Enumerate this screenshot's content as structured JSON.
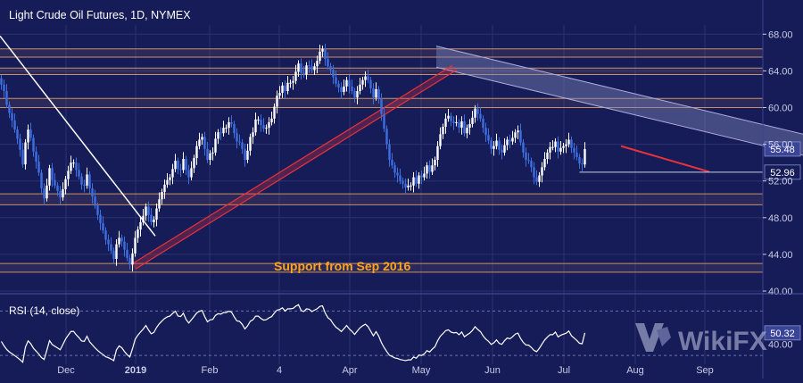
{
  "chart_title": "Light Crude Oil Futures, 1D, NYMEX",
  "annotation": "Support from Sep 2016",
  "watermark": "WikiFX",
  "colors": {
    "background": "#161c57",
    "grid": "#2a3270",
    "up_candle": "#ffffff",
    "down_candle": "#3d6fe0",
    "zone_line": "#c98f6a",
    "trendline_white": "#ffffff",
    "trendline_red": "#e8323c",
    "channel_fill": "#7c82b8",
    "annotation_text": "#ffa31a",
    "axis_text": "#c9cde6"
  },
  "chart_data": [
    {
      "type": "candlestick",
      "title": "Light Crude Oil Futures, 1D, NYMEX",
      "y_ticks": [
        "68.00",
        "64.00",
        "60.00",
        "56.00",
        "52.00",
        "48.00",
        "44.00",
        "40.00"
      ],
      "x_ticks": [
        "Dec",
        "2019",
        "Feb",
        "4",
        "Apr",
        "May",
        "Jun",
        "Jul",
        "Aug",
        "Sep"
      ],
      "ylim": [
        40,
        69
      ],
      "price_labels": [
        {
          "text": "55.48",
          "value": 55.48
        },
        {
          "text": "52.96",
          "value": 52.96
        }
      ],
      "horizontal_zones": [
        {
          "from": 42.05,
          "to": 43.0
        },
        {
          "from": 49.4,
          "to": 50.6
        },
        {
          "from": 60.0,
          "to": 61.0
        },
        {
          "from": 63.6,
          "to": 64.3
        },
        {
          "from": 65.5,
          "to": 66.4
        }
      ],
      "trendlines": [
        {
          "name": "falling-white",
          "start": {
            "day": 0,
            "price": 67.8
          },
          "end": {
            "day": 58,
            "price": 46.0
          }
        },
        {
          "name": "rising-red",
          "start": {
            "day": 49,
            "price": 42.9
          },
          "end": {
            "day": 169,
            "price": 64.6
          }
        },
        {
          "name": "falling-red",
          "start": {
            "day": 232,
            "price": 55.8
          },
          "end": {
            "day": 265,
            "price": 53.0
          }
        }
      ],
      "channel": {
        "upper_start": {
          "day": 163,
          "price": 66.7
        },
        "upper_end": {
          "day": 310,
          "price": 56.4
        },
        "width": 2.3
      },
      "series": [
        {
          "open": [
            63.2,
            62.5,
            61.8,
            60.3,
            59.4,
            58.6,
            57.6,
            56.6,
            55.4,
            53.8,
            56.2,
            57.6,
            56.7,
            55.2,
            54.1,
            52.9,
            51.2,
            50.1,
            51.5,
            53.4,
            52.1,
            51.5,
            50.9,
            50.2,
            51.1,
            52.2,
            53.1,
            54.0,
            54.0,
            53.2,
            52.5,
            51.6,
            51.5,
            52.7,
            51.2,
            50.3,
            49.3,
            48.3,
            47.4,
            46.6,
            45.6,
            45.1,
            44.4,
            43.5,
            45.1,
            45.8,
            45.4,
            44.5,
            43.6,
            42.9,
            44.1,
            45.8,
            46.7,
            47.5,
            48.2,
            49.2,
            48.3,
            47.5,
            47.8,
            49.0,
            50.0,
            50.8,
            51.6,
            52.1,
            52.4,
            53.3,
            54.2,
            53.3,
            53.2,
            54.4,
            53.2,
            52.4,
            53.4,
            54.5,
            55.8,
            56.5,
            56.8,
            55.5,
            54.3,
            55.0,
            55.1,
            56.6,
            57.3,
            57.2,
            57.8,
            57.8,
            58.4,
            58.2,
            57.2,
            56.3,
            56.2,
            55.5,
            54.3,
            55.3,
            56.8,
            57.3,
            58.7,
            58.7,
            58.1,
            57.7,
            57.8,
            58.4,
            58.8,
            60.1,
            61.3,
            61.6,
            62.4,
            61.8,
            62.7,
            62.7,
            62.9,
            63.9,
            64.8,
            63.8,
            63.6,
            64.6,
            64.5,
            64.1,
            64.5,
            65.1,
            66.1,
            66.4,
            65.3,
            64.5,
            64.1,
            63.3,
            62.6,
            62.2,
            61.7,
            62.3,
            63.0,
            62.3,
            61.8,
            61.1,
            61.8,
            62.5,
            63.0,
            63.4,
            63.0,
            62.1,
            61.1,
            62.0,
            61.0,
            59.3,
            57.7,
            56.0,
            54.3,
            53.7,
            52.9,
            52.6,
            52.0,
            51.7,
            51.3,
            51.5,
            51.5,
            52.4,
            51.7,
            52.6,
            52.4,
            52.8,
            53.7,
            53.0,
            53.7,
            54.3,
            55.8,
            57.1,
            57.9,
            58.8,
            59.1,
            58.5,
            58.3,
            58.4,
            57.8,
            58.5,
            57.2,
            57.8,
            58.2,
            58.9,
            59.9,
            59.3,
            58.8,
            57.8,
            57.0,
            56.4,
            55.5,
            55.8,
            56.4,
            55.4,
            55.1,
            55.9,
            56.5,
            56.3,
            56.7,
            57.3,
            57.5,
            56.2,
            55.1,
            54.3,
            54.2,
            53.5,
            52.4,
            51.9,
            52.6,
            53.5,
            54.4,
            55.1,
            55.7,
            55.7,
            56.3,
            55.2,
            55.6,
            55.8,
            56.0,
            56.5,
            55.6,
            55.1,
            54.6,
            53.9,
            53.8
          ],
          "close": [
            62.5,
            61.8,
            60.3,
            59.4,
            58.6,
            57.6,
            56.6,
            55.4,
            53.8,
            56.2,
            57.6,
            56.7,
            55.2,
            54.1,
            52.9,
            51.2,
            50.1,
            51.5,
            53.4,
            52.1,
            51.5,
            50.9,
            50.2,
            51.1,
            52.2,
            53.1,
            54.0,
            54.0,
            53.2,
            52.5,
            51.6,
            51.5,
            52.7,
            51.2,
            50.3,
            49.3,
            48.3,
            47.4,
            46.6,
            45.6,
            45.1,
            44.4,
            43.5,
            45.1,
            45.8,
            45.4,
            44.5,
            43.6,
            42.9,
            44.1,
            45.8,
            46.7,
            47.5,
            48.2,
            49.2,
            48.3,
            47.5,
            47.8,
            49.0,
            50.0,
            50.8,
            51.6,
            52.1,
            52.4,
            53.3,
            54.2,
            53.3,
            53.2,
            54.4,
            53.2,
            52.4,
            53.4,
            54.5,
            55.8,
            56.5,
            56.8,
            55.5,
            54.3,
            55.0,
            55.1,
            56.6,
            57.3,
            57.2,
            57.8,
            57.8,
            58.4,
            58.2,
            57.2,
            56.3,
            56.2,
            55.5,
            54.3,
            55.3,
            56.8,
            57.3,
            58.7,
            58.7,
            58.1,
            57.7,
            57.8,
            58.4,
            58.8,
            60.1,
            61.3,
            61.6,
            62.4,
            61.8,
            62.7,
            62.7,
            62.9,
            63.9,
            64.8,
            63.8,
            63.6,
            64.6,
            64.5,
            64.1,
            64.5,
            65.1,
            66.1,
            66.4,
            65.3,
            64.5,
            64.1,
            63.3,
            62.6,
            62.2,
            61.7,
            62.3,
            63.0,
            62.3,
            61.8,
            61.1,
            61.8,
            62.5,
            63.0,
            63.4,
            63.0,
            62.1,
            61.1,
            62.0,
            61.0,
            59.3,
            57.7,
            56.0,
            54.3,
            53.7,
            52.9,
            52.6,
            52.0,
            51.7,
            51.3,
            51.5,
            51.5,
            52.4,
            51.7,
            52.6,
            52.4,
            52.8,
            53.7,
            53.0,
            53.7,
            54.3,
            55.8,
            57.1,
            57.9,
            58.8,
            59.1,
            58.5,
            58.3,
            58.4,
            57.8,
            58.5,
            57.2,
            57.8,
            58.2,
            58.9,
            59.9,
            59.3,
            58.8,
            57.8,
            57.0,
            56.4,
            55.5,
            55.8,
            56.4,
            55.4,
            55.1,
            55.9,
            56.5,
            56.3,
            56.7,
            57.3,
            57.5,
            56.2,
            55.1,
            54.3,
            54.2,
            53.5,
            52.4,
            51.9,
            52.6,
            53.5,
            54.4,
            55.1,
            55.7,
            55.7,
            56.3,
            55.2,
            55.6,
            55.8,
            56.0,
            56.5,
            55.6,
            55.1,
            54.6,
            53.9,
            53.8,
            55.48
          ]
        }
      ]
    },
    {
      "type": "line",
      "title": "RSI (14, close)",
      "y_ticks": [
        "40.00"
      ],
      "ylim": [
        22,
        84
      ],
      "last_value_label": "50.32",
      "series": [
        {
          "values": [
            42.6,
            38.6,
            35.3,
            33.1,
            31.5,
            29.8,
            28.0,
            26.1,
            23.9,
            37.4,
            43.1,
            40.5,
            36.4,
            33.8,
            31.2,
            28.0,
            26.3,
            34.6,
            43.3,
            39.8,
            38.2,
            36.7,
            35.1,
            39.8,
            44.7,
            48.3,
            51.6,
            51.6,
            48.5,
            46.0,
            43.0,
            42.7,
            47.3,
            42.2,
            39.5,
            36.8,
            34.4,
            32.4,
            30.7,
            28.8,
            27.9,
            26.7,
            25.3,
            35.0,
            38.5,
            36.9,
            33.5,
            30.6,
            28.6,
            36.0,
            44.5,
            48.2,
            51.1,
            53.7,
            57.0,
            52.9,
            49.5,
            50.7,
            55.2,
            58.5,
            61.0,
            63.3,
            64.7,
            65.5,
            67.8,
            69.9,
            65.5,
            65.0,
            68.1,
            62.5,
            59.2,
            62.1,
            65.1,
            68.3,
            69.8,
            70.5,
            64.9,
            60.3,
            62.1,
            62.4,
            66.1,
            67.6,
            67.2,
            68.6,
            68.6,
            69.9,
            69.0,
            64.7,
            61.1,
            60.7,
            58.0,
            53.8,
            56.7,
            60.8,
            62.1,
            65.4,
            65.4,
            63.3,
            61.8,
            62.2,
            63.9,
            65.0,
            68.2,
            70.8,
            71.4,
            72.9,
            70.0,
            72.0,
            72.0,
            72.4,
            74.3,
            75.8,
            70.5,
            69.6,
            72.0,
            71.6,
            69.5,
            70.8,
            72.1,
            74.2,
            74.7,
            68.2,
            64.0,
            62.1,
            58.4,
            55.4,
            53.7,
            51.5,
            54.1,
            57.0,
            53.8,
            51.7,
            48.9,
            52.0,
            54.9,
            56.7,
            58.1,
            56.0,
            51.8,
            47.6,
            51.4,
            47.3,
            41.5,
            37.1,
            33.4,
            30.1,
            29.0,
            27.7,
            27.2,
            26.3,
            25.8,
            25.3,
            25.9,
            25.9,
            28.6,
            27.4,
            30.3,
            29.9,
            31.3,
            34.3,
            33.1,
            35.6,
            37.8,
            43.2,
            47.3,
            49.7,
            52.3,
            53.1,
            51.0,
            50.3,
            50.7,
            48.6,
            51.1,
            46.8,
            48.6,
            50.1,
            52.5,
            55.9,
            53.4,
            51.4,
            47.5,
            44.7,
            42.7,
            39.9,
            41.3,
            44.0,
            40.8,
            40.0,
            43.3,
            45.7,
            45.0,
            46.8,
            49.2,
            50.1,
            45.2,
            41.7,
            39.4,
            39.2,
            37.2,
            34.5,
            33.4,
            36.4,
            40.3,
            43.9,
            46.5,
            48.7,
            48.7,
            51.0,
            46.6,
            48.2,
            49.1,
            50.0,
            52.0,
            47.7,
            45.6,
            43.5,
            40.9,
            40.5,
            50.32
          ]
        }
      ]
    }
  ]
}
